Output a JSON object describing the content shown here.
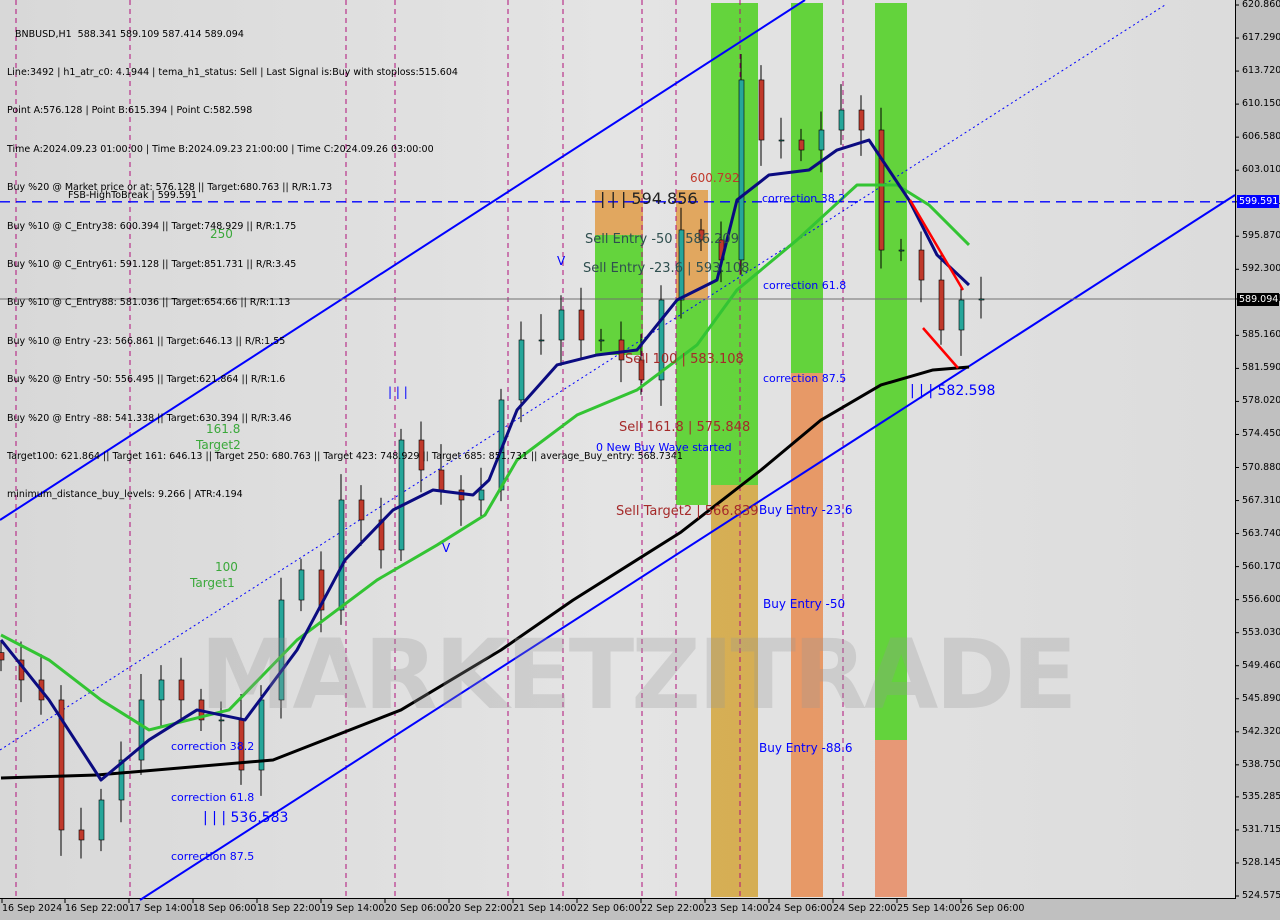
{
  "header": {
    "title_line": "BNBUSD,H1  588.341 589.109 587.414 589.094",
    "lines": [
      "Line:3492 | h1_atr_c0: 4.1944 | tema_h1_status: Sell | Last Signal is:Buy with stoploss:515.604",
      "Point A:576.128 | Point B:615.394 | Point C:582.598",
      "Time A:2024.09.23 01:00:00 | Time B:2024.09.23 21:00:00 | Time C:2024.09.26 03:00:00",
      "Buy %20 @ Market price or at: 576.128 || Target:680.763 || R/R:1.73",
      "Buy %10 @ C_Entry38: 600.394 || Target:748.929 || R/R:1.75",
      "Buy %10 @ C_Entry61: 591.128 || Target:851.731 || R/R:3.45",
      "Buy %10 @ C_Entry88: 581.036 || Target:654.66 || R/R:1.13",
      "Buy %10 @ Entry -23: 566.861 || Target:646.13 || R/R:1.55",
      "Buy %20 @ Entry -50: 556.495 || Target:621.864 || R/R:1.6",
      "Buy %20 @ Entry -88: 541.338 || Target:630.394 || R/R:3.46",
      "Target100: 621.864 || Target 161: 646.13 || Target 250: 680.763 || Target 423: 748.929 || Target 685: 851.731 || average_Buy_entry: 568.7341",
      "minimum_distance_buy_levels: 9.266 | ATR:4.194"
    ]
  },
  "watermark": "MARKETZITRADE",
  "annotations": {
    "fsb": "FSB-HighToBreak | 599.591",
    "t250": "250",
    "t161": "161.8",
    "target2": "Target2",
    "t100": "100",
    "target1": "Target1",
    "corr38_left": "correction 38.2",
    "corr61_left": "correction 61.8",
    "corr87_left": "correction 87.5",
    "point_left": "| | | 536.583",
    "point_c": "| | | 582.598",
    "point_b": "| | | 594.856",
    "sell_stop": "600.792",
    "marks_iii": "| | |",
    "v1": "V",
    "v2": "V",
    "corr38": "correction 38.2",
    "corr61": "correction 61.8",
    "corr87": "correction 87.5",
    "buy236": "Buy Entry -23.6",
    "buy50": "Buy Entry -50",
    "buy886": "Buy Entry -88.6",
    "sell50": "Sell Entry -50 | 586.209",
    "sell236": "Sell Entry -23.6 | 593.108",
    "sell100": "Sell 100 | 583.108",
    "sell1618": "Sell 161.8 | 575.848",
    "sellt2": "Sell Target2 | 566.839",
    "newwave": "0 New Buy Wave started"
  },
  "colors": {
    "up": "#26a69a",
    "down": "#c0392b",
    "ma_fast": "#0b0b80",
    "ma_mid": "#33c433",
    "ma_slow": "#000000",
    "channel": "#0000ff",
    "zone_green": "#55d12a",
    "zone_orange": "#e0a050",
    "current_tag": "#000000",
    "fsb_tag": "#0000ff"
  },
  "chart_data": {
    "type": "candlestick",
    "symbol": "BNBUSD",
    "timeframe": "H1",
    "ylim": [
      524.575,
      620.86
    ],
    "y_ticks": [
      "620.860",
      "617.290",
      "613.720",
      "610.150",
      "606.580",
      "603.010",
      "599.591",
      "595.870",
      "592.300",
      "589.094",
      "585.160",
      "581.590",
      "578.020",
      "574.450",
      "570.880",
      "567.310",
      "563.740",
      "560.170",
      "556.600",
      "553.030",
      "549.460",
      "545.890",
      "542.320",
      "538.750",
      "535.285",
      "531.715",
      "528.145",
      "524.575"
    ],
    "x_ticks": [
      "16 Sep 2024",
      "16 Sep 22:00",
      "17 Sep 14:00",
      "18 Sep 06:00",
      "18 Sep 22:00",
      "19 Sep 14:00",
      "20 Sep 06:00",
      "20 Sep 22:00",
      "21 Sep 14:00",
      "22 Sep 06:00",
      "22 Sep 22:00",
      "23 Sep 14:00",
      "24 Sep 06:00",
      "24 Sep 22:00",
      "25 Sep 14:00",
      "26 Sep 06:00"
    ],
    "current_price": 589.094,
    "fsb_level": 599.591,
    "close": {
      "start": "2024-09-16 06:00",
      "step_hours": 5,
      "values": [
        550.08,
        547.92,
        545.76,
        531.71,
        530.63,
        534.95,
        539.27,
        545.76,
        547.92,
        545.76,
        543.6,
        543.6,
        538.19,
        545.76,
        556.56,
        559.81,
        555.48,
        567.37,
        565.21,
        561.97,
        573.85,
        570.61,
        568.45,
        567.37,
        568.45,
        578.18,
        584.66,
        584.66,
        587.9,
        584.66,
        584.66,
        582.5,
        580.34,
        588.98,
        596.55,
        595.47,
        593.31,
        612.76,
        606.27,
        606.27,
        605.19,
        607.35,
        609.51,
        607.35,
        594.38,
        594.38,
        591.14,
        585.74,
        588.98,
        589.094
      ]
    },
    "series": [
      {
        "key": "ma_slow",
        "points": [
          [
            "2024-09-16 06:00",
            537.33
          ],
          [
            "2024-09-17 06:00",
            537.65
          ],
          [
            "2024-09-19 02:00",
            539.27
          ],
          [
            "2024-09-20 10:00",
            544.68
          ],
          [
            "2024-09-21 11:00",
            551.16
          ],
          [
            "2024-09-22 05:00",
            556.55
          ],
          [
            "2024-09-23 08:00",
            563.9
          ],
          [
            "2024-09-24 04:00",
            570.61
          ],
          [
            "2024-09-24 19:00",
            576.01
          ],
          [
            "2024-09-25 10:00",
            579.8
          ],
          [
            "2024-09-25 23:00",
            581.42
          ],
          [
            "2024-09-26 08:00",
            581.74
          ]
        ]
      },
      {
        "key": "ma_mid",
        "points": [
          [
            "2024-09-16 06:00",
            552.78
          ],
          [
            "2024-09-16 18:00",
            550.08
          ],
          [
            "2024-09-17 07:00",
            545.76
          ],
          [
            "2024-09-17 19:00",
            542.52
          ],
          [
            "2024-09-18 15:00",
            544.68
          ],
          [
            "2024-09-19 08:00",
            552.24
          ],
          [
            "2024-09-20 04:00",
            558.72
          ],
          [
            "2024-09-20 19:00",
            562.5
          ],
          [
            "2024-09-21 07:00",
            565.75
          ],
          [
            "2024-09-21 15:00",
            571.69
          ],
          [
            "2024-09-22 06:00",
            576.55
          ],
          [
            "2024-09-22 21:00",
            579.26
          ],
          [
            "2024-09-23 12:00",
            584.12
          ],
          [
            "2024-09-23 22:00",
            590.07
          ],
          [
            "2024-09-24 13:00",
            595.47
          ],
          [
            "2024-09-25 04:00",
            601.41
          ],
          [
            "2024-09-25 14:00",
            601.41
          ],
          [
            "2024-09-25 22:00",
            599.25
          ],
          [
            "2024-09-26 08:00",
            594.93
          ]
        ]
      },
      {
        "key": "ma_fast",
        "points": [
          [
            "2024-09-16 06:00",
            552.24
          ],
          [
            "2024-09-16 18:00",
            545.76
          ],
          [
            "2024-09-17 07:00",
            537.11
          ],
          [
            "2024-09-17 19:00",
            541.44
          ],
          [
            "2024-09-18 07:00",
            544.68
          ],
          [
            "2024-09-18 19:00",
            543.6
          ],
          [
            "2024-09-19 08:00",
            551.16
          ],
          [
            "2024-09-19 20:00",
            560.89
          ],
          [
            "2024-09-20 08:00",
            566.29
          ],
          [
            "2024-09-20 18:00",
            568.45
          ],
          [
            "2024-09-21 04:00",
            567.91
          ],
          [
            "2024-09-21 08:00",
            569.53
          ],
          [
            "2024-09-21 15:00",
            577.09
          ],
          [
            "2024-09-22 01:00",
            581.96
          ],
          [
            "2024-09-22 11:00",
            583.04
          ],
          [
            "2024-09-22 21:00",
            583.58
          ],
          [
            "2024-09-23 07:00",
            588.98
          ],
          [
            "2024-09-23 17:00",
            591.14
          ],
          [
            "2024-09-23 22:00",
            599.79
          ],
          [
            "2024-09-24 06:00",
            602.49
          ],
          [
            "2024-09-24 16:00",
            603.03
          ],
          [
            "2024-09-24 23:00",
            605.19
          ],
          [
            "2024-09-25 07:00",
            606.27
          ],
          [
            "2024-09-25 17:00",
            599.79
          ],
          [
            "2024-09-26 00:00",
            593.85
          ],
          [
            "2024-09-26 08:00",
            590.6
          ]
        ]
      }
    ]
  }
}
